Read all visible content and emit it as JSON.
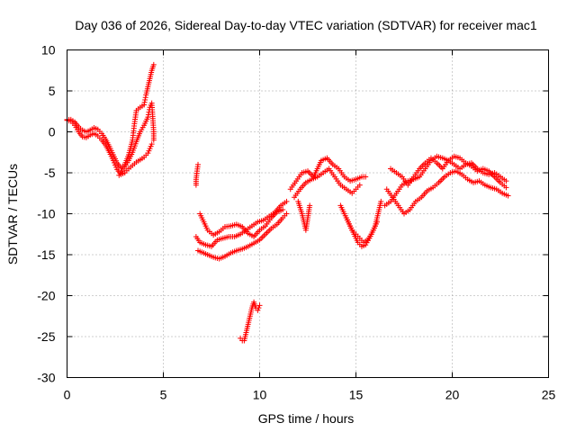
{
  "chart_data": {
    "type": "scatter",
    "title": "Day 036 of 2026, Sidereal Day-to-day VTEC variation (SDTVAR) for receiver mac1",
    "xlabel": "GPS time / hours",
    "ylabel": "SDTVAR / TECUs",
    "xlim": [
      0,
      25
    ],
    "ylim": [
      -30,
      10
    ],
    "xticks": [
      0,
      5,
      10,
      15,
      20,
      25
    ],
    "yticks": [
      -30,
      -25,
      -20,
      -15,
      -10,
      -5,
      0,
      5,
      10
    ],
    "grid": true,
    "marker": "+",
    "series": [
      {
        "name": "SDTVAR",
        "color": "#ff0000",
        "segments": [
          [
            [
              0.0,
              1.4
            ],
            [
              0.2,
              1.3
            ],
            [
              0.4,
              0.8
            ],
            [
              0.6,
              0.0
            ],
            [
              0.8,
              -0.6
            ],
            [
              1.0,
              -0.7
            ],
            [
              1.2,
              -0.4
            ],
            [
              1.4,
              -0.2
            ],
            [
              1.6,
              -0.5
            ],
            [
              1.8,
              -1.0
            ],
            [
              2.0,
              -1.6
            ],
            [
              2.2,
              -2.5
            ],
            [
              2.4,
              -3.5
            ],
            [
              2.6,
              -4.6
            ],
            [
              2.8,
              -5.2
            ],
            [
              3.0,
              -5.0
            ],
            [
              3.2,
              -4.5
            ],
            [
              3.4,
              -4.1
            ],
            [
              3.6,
              -3.7
            ],
            [
              3.8,
              -3.4
            ],
            [
              4.0,
              -3.1
            ],
            [
              4.2,
              -2.6
            ],
            [
              4.4,
              -1.5
            ]
          ],
          [
            [
              0.0,
              1.5
            ],
            [
              0.2,
              1.5
            ],
            [
              0.4,
              1.2
            ],
            [
              0.6,
              0.6
            ],
            [
              0.8,
              0.2
            ],
            [
              1.0,
              0.0
            ],
            [
              1.2,
              0.2
            ],
            [
              1.4,
              0.5
            ],
            [
              1.6,
              0.3
            ],
            [
              1.8,
              -0.2
            ],
            [
              2.0,
              -0.9
            ],
            [
              2.2,
              -1.8
            ],
            [
              2.4,
              -2.8
            ],
            [
              2.6,
              -3.8
            ],
            [
              2.8,
              -4.4
            ],
            [
              3.0,
              -4.0
            ],
            [
              3.2,
              -2.8
            ],
            [
              3.4,
              -1.0
            ],
            [
              3.5,
              1.0
            ],
            [
              3.6,
              2.6
            ],
            [
              3.8,
              3.0
            ],
            [
              4.0,
              3.3
            ],
            [
              4.1,
              4.5
            ],
            [
              4.2,
              5.5
            ],
            [
              4.3,
              6.5
            ],
            [
              4.4,
              7.5
            ],
            [
              4.5,
              8.2
            ]
          ],
          [
            [
              2.7,
              -5.3
            ],
            [
              3.0,
              -4.3
            ],
            [
              3.2,
              -3.5
            ],
            [
              3.4,
              -2.5
            ],
            [
              3.6,
              -1.2
            ],
            [
              3.8,
              0.0
            ],
            [
              4.0,
              0.8
            ],
            [
              4.2,
              1.8
            ],
            [
              4.3,
              3.0
            ],
            [
              4.4,
              3.5
            ],
            [
              4.5,
              0.0
            ],
            [
              4.5,
              -1.0
            ]
          ],
          [
            [
              6.8,
              -4.0
            ],
            [
              6.75,
              -4.8
            ],
            [
              6.7,
              -5.8
            ],
            [
              6.7,
              -6.5
            ]
          ],
          [
            [
              6.7,
              -12.8
            ],
            [
              6.9,
              -13.5
            ],
            [
              7.2,
              -13.8
            ],
            [
              7.5,
              -14.0
            ],
            [
              7.8,
              -13.2
            ],
            [
              8.1,
              -13.0
            ],
            [
              8.4,
              -12.8
            ],
            [
              8.7,
              -12.8
            ],
            [
              9.0,
              -12.5
            ],
            [
              9.3,
              -12.0
            ],
            [
              9.6,
              -11.5
            ],
            [
              9.9,
              -11.0
            ],
            [
              10.2,
              -10.8
            ],
            [
              10.5,
              -10.3
            ],
            [
              10.8,
              -9.8
            ],
            [
              11.1,
              -9.0
            ],
            [
              11.4,
              -8.5
            ]
          ],
          [
            [
              6.8,
              -14.5
            ],
            [
              7.0,
              -14.7
            ],
            [
              7.3,
              -15.0
            ],
            [
              7.6,
              -15.3
            ],
            [
              7.9,
              -15.5
            ],
            [
              8.2,
              -15.2
            ],
            [
              8.5,
              -14.8
            ],
            [
              8.8,
              -14.5
            ],
            [
              9.1,
              -14.3
            ],
            [
              9.4,
              -14.0
            ],
            [
              9.7,
              -13.6
            ],
            [
              10.0,
              -13.2
            ],
            [
              10.3,
              -12.5
            ],
            [
              10.6,
              -11.8
            ],
            [
              10.9,
              -11.3
            ],
            [
              11.2,
              -10.5
            ],
            [
              11.4,
              -10.0
            ]
          ],
          [
            [
              6.9,
              -10.0
            ],
            [
              7.1,
              -11.0
            ],
            [
              7.3,
              -12.0
            ],
            [
              7.6,
              -12.6
            ],
            [
              7.9,
              -12.2
            ],
            [
              8.2,
              -11.6
            ],
            [
              8.5,
              -11.5
            ],
            [
              8.8,
              -11.3
            ],
            [
              9.1,
              -11.6
            ],
            [
              9.4,
              -12.4
            ],
            [
              9.7,
              -12.8
            ],
            [
              10.0,
              -12.0
            ],
            [
              10.3,
              -11.5
            ],
            [
              10.6,
              -10.5
            ],
            [
              10.9,
              -9.8
            ],
            [
              11.2,
              -9.5
            ]
          ],
          [
            [
              9.0,
              -25.2
            ],
            [
              9.1,
              -25.5
            ],
            [
              9.2,
              -25.5
            ],
            [
              9.3,
              -24.5
            ],
            [
              9.4,
              -23.5
            ],
            [
              9.5,
              -22.5
            ],
            [
              9.6,
              -21.5
            ],
            [
              9.7,
              -20.8
            ],
            [
              9.8,
              -21.5
            ],
            [
              9.9,
              -21.8
            ],
            [
              10.0,
              -21.2
            ]
          ],
          [
            [
              11.6,
              -7.0
            ],
            [
              11.9,
              -6.0
            ],
            [
              12.2,
              -5.0
            ],
            [
              12.5,
              -4.8
            ],
            [
              12.8,
              -5.5
            ],
            [
              13.0,
              -4.5
            ],
            [
              13.2,
              -3.5
            ],
            [
              13.5,
              -3.2
            ],
            [
              13.8,
              -4.0
            ],
            [
              14.1,
              -4.5
            ],
            [
              14.4,
              -5.5
            ],
            [
              14.7,
              -6.0
            ],
            [
              15.0,
              -5.8
            ],
            [
              15.3,
              -5.5
            ],
            [
              15.5,
              -5.5
            ]
          ],
          [
            [
              11.8,
              -8.0
            ],
            [
              12.1,
              -7.0
            ],
            [
              12.4,
              -6.2
            ],
            [
              12.7,
              -5.8
            ],
            [
              13.0,
              -5.5
            ],
            [
              13.3,
              -5.0
            ],
            [
              13.6,
              -4.5
            ],
            [
              13.9,
              -5.5
            ],
            [
              14.2,
              -6.5
            ],
            [
              14.5,
              -7.0
            ],
            [
              14.8,
              -7.5
            ],
            [
              15.0,
              -7.0
            ],
            [
              15.2,
              -6.5
            ]
          ],
          [
            [
              12.0,
              -8.5
            ],
            [
              12.2,
              -10.0
            ],
            [
              12.3,
              -11.0
            ],
            [
              12.4,
              -12.0
            ],
            [
              12.5,
              -10.5
            ],
            [
              12.6,
              -9.0
            ]
          ],
          [
            [
              14.2,
              -9.0
            ],
            [
              14.4,
              -10.0
            ],
            [
              14.6,
              -11.0
            ],
            [
              14.8,
              -12.0
            ],
            [
              15.0,
              -12.5
            ],
            [
              15.2,
              -13.0
            ],
            [
              15.4,
              -13.5
            ],
            [
              15.6,
              -13.2
            ],
            [
              15.8,
              -12.5
            ],
            [
              16.0,
              -11.5
            ],
            [
              16.1,
              -10.5
            ],
            [
              16.2,
              -9.5
            ],
            [
              16.3,
              -8.5
            ]
          ],
          [
            [
              14.5,
              -10.5
            ],
            [
              14.7,
              -11.5
            ],
            [
              14.9,
              -12.5
            ],
            [
              15.1,
              -13.5
            ],
            [
              15.3,
              -14.0
            ],
            [
              15.5,
              -13.8
            ],
            [
              15.7,
              -13.0
            ],
            [
              15.9,
              -12.0
            ],
            [
              16.1,
              -11.0
            ]
          ],
          [
            [
              16.5,
              -9.0
            ],
            [
              16.8,
              -8.5
            ],
            [
              17.1,
              -7.5
            ],
            [
              17.4,
              -6.5
            ],
            [
              17.7,
              -6.0
            ],
            [
              18.0,
              -5.8
            ],
            [
              18.3,
              -5.5
            ],
            [
              18.6,
              -4.5
            ],
            [
              18.9,
              -3.5
            ],
            [
              19.2,
              -3.0
            ],
            [
              19.5,
              -3.2
            ],
            [
              19.8,
              -3.5
            ],
            [
              20.1,
              -4.0
            ],
            [
              20.4,
              -4.5
            ],
            [
              20.7,
              -4.0
            ],
            [
              21.0,
              -3.8
            ],
            [
              21.3,
              -4.5
            ],
            [
              21.6,
              -5.0
            ],
            [
              21.9,
              -5.2
            ],
            [
              22.2,
              -5.0
            ],
            [
              22.5,
              -5.5
            ],
            [
              22.8,
              -6.0
            ]
          ],
          [
            [
              16.8,
              -4.5
            ],
            [
              17.1,
              -5.0
            ],
            [
              17.4,
              -5.5
            ],
            [
              17.7,
              -6.5
            ],
            [
              18.0,
              -5.5
            ],
            [
              18.3,
              -4.5
            ],
            [
              18.6,
              -3.8
            ],
            [
              18.9,
              -3.2
            ],
            [
              19.2,
              -3.8
            ],
            [
              19.5,
              -4.5
            ],
            [
              19.8,
              -3.5
            ],
            [
              20.1,
              -3.0
            ],
            [
              20.4,
              -3.2
            ],
            [
              20.7,
              -3.8
            ],
            [
              21.0,
              -4.2
            ],
            [
              21.3,
              -4.8
            ],
            [
              21.6,
              -4.5
            ],
            [
              21.9,
              -4.8
            ],
            [
              22.2,
              -5.5
            ],
            [
              22.5,
              -6.2
            ],
            [
              22.8,
              -6.8
            ]
          ],
          [
            [
              16.6,
              -7.0
            ],
            [
              16.9,
              -8.0
            ],
            [
              17.2,
              -9.0
            ],
            [
              17.5,
              -10.0
            ],
            [
              17.8,
              -9.5
            ],
            [
              18.1,
              -8.5
            ],
            [
              18.4,
              -8.0
            ],
            [
              18.7,
              -7.2
            ],
            [
              19.0,
              -6.8
            ],
            [
              19.3,
              -6.2
            ],
            [
              19.6,
              -5.5
            ],
            [
              19.9,
              -5.0
            ],
            [
              20.2,
              -4.8
            ],
            [
              20.5,
              -5.2
            ],
            [
              20.8,
              -5.8
            ],
            [
              21.1,
              -6.2
            ],
            [
              21.4,
              -6.0
            ],
            [
              21.7,
              -6.5
            ],
            [
              22.0,
              -6.8
            ],
            [
              22.3,
              -7.0
            ],
            [
              22.6,
              -7.5
            ],
            [
              22.9,
              -7.8
            ]
          ]
        ]
      }
    ]
  }
}
